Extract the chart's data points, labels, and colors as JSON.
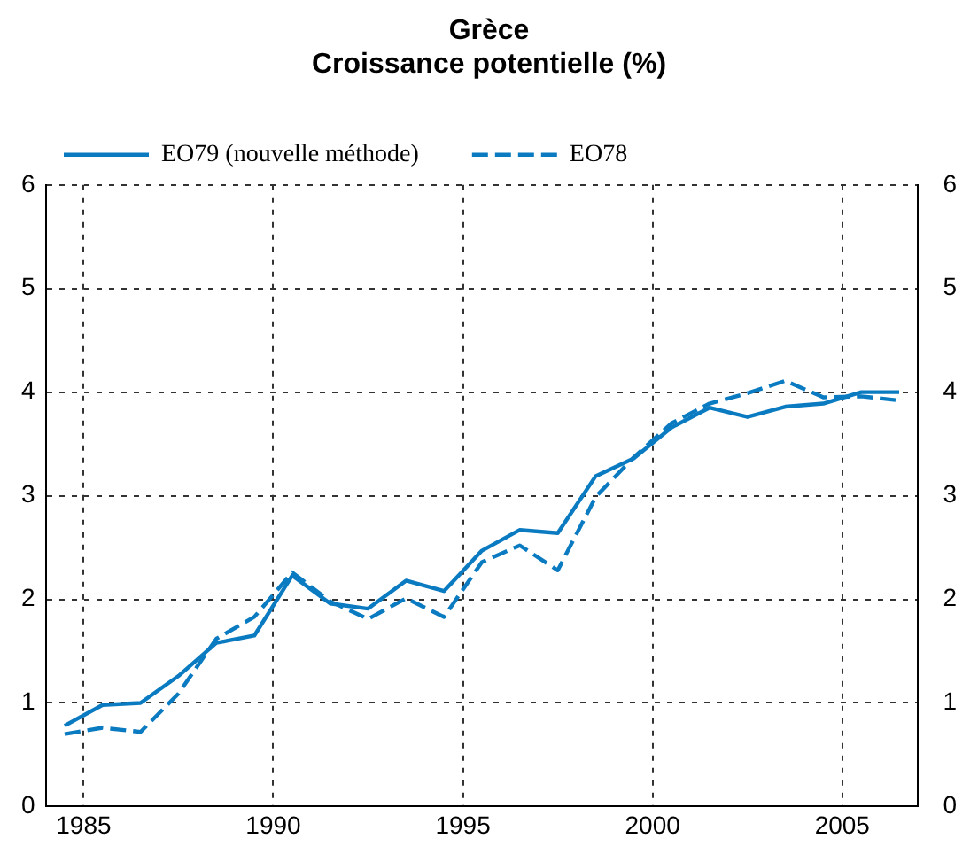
{
  "chart_data": {
    "type": "line",
    "title": "Grèce",
    "subtitle": "Croissance potentielle (%)",
    "x": [
      1984.5,
      1985.5,
      1986.5,
      1987.5,
      1988.5,
      1989.5,
      1990.5,
      1991.5,
      1992.5,
      1993.5,
      1994.5,
      1995.5,
      1996.5,
      1997.5,
      1998.5,
      1999.5,
      2000.5,
      2001.5,
      2002.5,
      2003.5,
      2004.5,
      2005.5,
      2006.5
    ],
    "series": [
      {
        "name": "EO79 (nouvelle méthode)",
        "color": "#0b7bc1",
        "line_style": "solid",
        "values": [
          0.78,
          0.98,
          1.0,
          1.26,
          1.58,
          1.65,
          2.23,
          1.96,
          1.91,
          2.18,
          2.08,
          2.47,
          2.67,
          2.64,
          3.19,
          3.36,
          3.66,
          3.85,
          3.76,
          3.86,
          3.89,
          4.0,
          4.0
        ]
      },
      {
        "name": "EO78",
        "color": "#0b7bc1",
        "line_style": "dashed",
        "values": [
          0.7,
          0.76,
          0.72,
          1.09,
          1.62,
          1.83,
          2.26,
          1.98,
          1.81,
          2.01,
          1.83,
          2.36,
          2.52,
          2.28,
          2.99,
          3.37,
          3.7,
          3.89,
          3.99,
          4.11,
          3.95,
          3.96,
          3.92
        ]
      }
    ],
    "xlim": [
      1984,
      2007
    ],
    "xticks": [
      1985,
      1990,
      1995,
      2000,
      2005
    ],
    "ylim": [
      0,
      6
    ],
    "yticks": [
      0,
      1,
      2,
      3,
      4,
      5,
      6
    ],
    "y2lim": [
      0,
      6
    ],
    "y2ticks": [
      0,
      1,
      2,
      3,
      4,
      5,
      6
    ],
    "grid": true,
    "legend": "top left",
    "marker": "none"
  }
}
